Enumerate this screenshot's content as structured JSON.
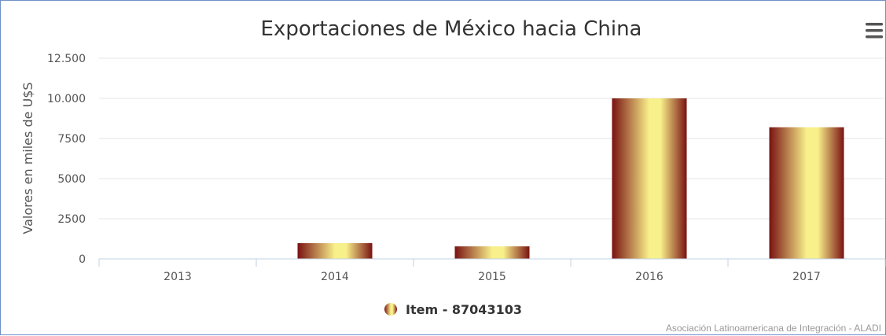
{
  "chart_data": {
    "type": "bar",
    "title": "Exportaciones de México hacia China",
    "ylabel": "Valores en miles de U$S",
    "xlabel": "",
    "categories": [
      "2013",
      "2014",
      "2015",
      "2016",
      "2017"
    ],
    "series": [
      {
        "name": "Item - 87043103",
        "values": [
          0,
          980,
          780,
          10000,
          8200
        ]
      }
    ],
    "ylim": [
      0,
      12500
    ],
    "yticks": [
      0,
      2500,
      5000,
      7500,
      10000,
      12500
    ],
    "ytick_labels": [
      "0",
      "2500",
      "5000",
      "7500",
      "10.000",
      "12.500"
    ],
    "grid": true,
    "legend": "bottom-center",
    "credit": "Asociación Latinoamericana de Integración - ALADI",
    "colors": {
      "bar_dark": "#7a1212",
      "bar_light": "#f8f08a",
      "grid": "#e6e6e6",
      "axis": "#c0d0e0"
    }
  },
  "toolbar": {
    "menu_icon": "hamburger-menu-icon"
  }
}
